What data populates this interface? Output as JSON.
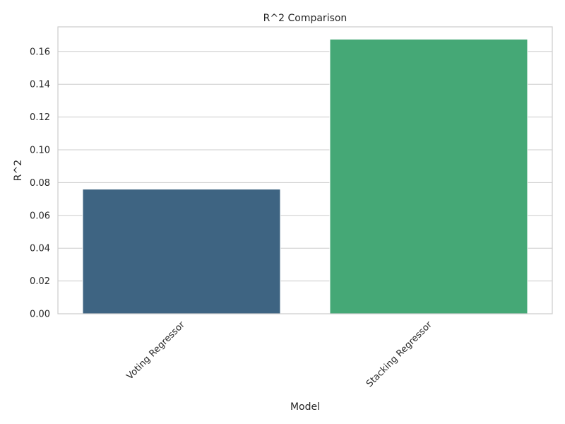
{
  "chart_data": {
    "type": "bar",
    "title": "R^2 Comparison",
    "xlabel": "Model",
    "ylabel": "R^2",
    "categories": [
      "Voting Regressor",
      "Stacking Regressor"
    ],
    "values": [
      0.076,
      0.1675
    ],
    "colors": [
      "#3e6482",
      "#45a876"
    ],
    "ylim": [
      0,
      0.175
    ],
    "yticks": [
      "0.00",
      "0.02",
      "0.04",
      "0.06",
      "0.08",
      "0.10",
      "0.12",
      "0.14",
      "0.16"
    ],
    "grid": true,
    "legend": "none",
    "xtick_rotation": -45
  }
}
